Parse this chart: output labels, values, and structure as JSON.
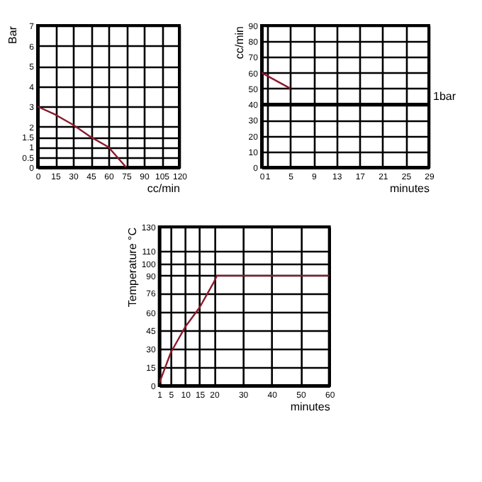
{
  "chart_data": [
    {
      "type": "line",
      "ylabel": "Bar",
      "xlabel": "cc/min",
      "x": [
        0,
        15,
        30,
        45,
        60,
        75
      ],
      "series": [
        {
          "color": "#8b1a2a",
          "values": [
            3,
            2.6,
            2.1,
            1.5,
            1,
            0
          ]
        }
      ],
      "xlim": [
        0,
        120
      ],
      "xticks": [
        0,
        15,
        30,
        45,
        60,
        75,
        90,
        105,
        120
      ],
      "ylim": [
        0,
        7
      ],
      "yticks": [
        0,
        0.5,
        1,
        1.5,
        2,
        3,
        4,
        5,
        6,
        7
      ],
      "grid": true
    },
    {
      "type": "line",
      "ylabel": "cc/min",
      "xlabel": "minutes",
      "x": [
        0,
        5
      ],
      "series": [
        {
          "color": "#8b1a2a",
          "values": [
            60,
            50
          ]
        }
      ],
      "xlim": [
        0,
        29
      ],
      "xticks": [
        0,
        1,
        5,
        9,
        13,
        17,
        21,
        25,
        29
      ],
      "ylim": [
        0,
        90
      ],
      "yticks": [
        0,
        10,
        20,
        30,
        40,
        50,
        60,
        70,
        80,
        90
      ],
      "ref_lines": [
        {
          "axis": "y",
          "value": 40,
          "label": "1bar",
          "color": "#000000"
        }
      ],
      "grid": true
    },
    {
      "type": "line",
      "ylabel": "Temperature °C",
      "xlabel": "minutes",
      "x": [
        1,
        5,
        10,
        15,
        20,
        21,
        60
      ],
      "series": [
        {
          "color": "#8b1a2a",
          "values": [
            2,
            27,
            48,
            64,
            85,
            90,
            90
          ]
        }
      ],
      "xlim": [
        1,
        60
      ],
      "xticks": [
        1,
        5,
        10,
        15,
        20,
        30,
        40,
        50,
        60
      ],
      "ylim": [
        0,
        130
      ],
      "yticks": [
        0,
        15,
        30,
        45,
        60,
        76,
        90,
        100,
        110,
        130
      ],
      "grid": true
    }
  ]
}
